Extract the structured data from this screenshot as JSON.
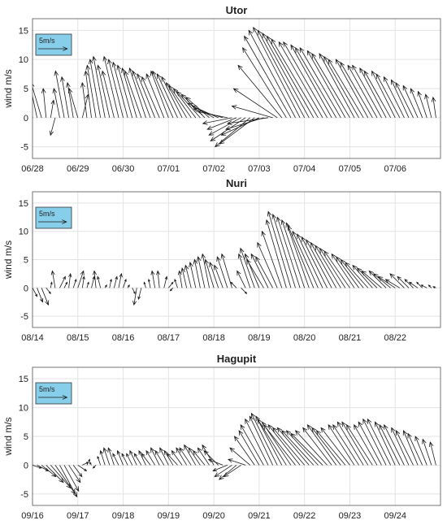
{
  "chart_data": [
    {
      "type": "quiver",
      "title": "Utor",
      "ylabel": "wind m/s",
      "xlabel": "",
      "ylim": [
        -7,
        17
      ],
      "yticks": [
        -5,
        0,
        5,
        10,
        15
      ],
      "xticks": [
        "06/28",
        "06/29",
        "06/30",
        "07/01",
        "07/02",
        "07/03",
        "07/04",
        "07/05",
        "07/06"
      ],
      "xrange_days": [
        0,
        9
      ],
      "legend": {
        "label": "5m/s",
        "u": 5,
        "v": 0,
        "placement": "top-left"
      },
      "grid": true,
      "series": [
        {
          "t": [
            0.0,
            0.1,
            0.2,
            0.3,
            0.4,
            0.5,
            0.6,
            0.7,
            0.8,
            0.9,
            1.0,
            1.1,
            1.2,
            1.3,
            1.4,
            1.5,
            1.6,
            1.7,
            1.8,
            1.9,
            2.0,
            2.1,
            2.2,
            2.3,
            2.4,
            2.5,
            2.6,
            2.7,
            2.8,
            2.9,
            3.0,
            3.1,
            3.2,
            3.3,
            3.4,
            3.5,
            3.6,
            3.7,
            3.8,
            3.9,
            4.0,
            4.1,
            4.2,
            4.3,
            4.4,
            4.5,
            4.6,
            4.7,
            4.8,
            4.9,
            5.0,
            5.1,
            5.2,
            5.3,
            5.4,
            5.5,
            5.6,
            5.7,
            5.8,
            5.9,
            6.0,
            6.1,
            6.2,
            6.3,
            6.4,
            6.5,
            6.6,
            6.7,
            6.8,
            6.9,
            7.0,
            7.1,
            7.2,
            7.3,
            7.4,
            7.5,
            7.6,
            7.7,
            7.8,
            7.9,
            8.0,
            8.1,
            8.2,
            8.3,
            8.4,
            8.5,
            8.6,
            8.7,
            8.8,
            8.9
          ],
          "u": [
            -1.0,
            -1.5,
            -1.8,
            -0.5,
            0.5,
            -0.8,
            -1.0,
            -1.5,
            -1.2,
            -1.0,
            -1.5,
            1.0,
            -0.8,
            -1.0,
            -1.5,
            -1.8,
            -2.0,
            -2.0,
            -2.0,
            -2.5,
            -2.5,
            -2.5,
            -2.5,
            -2.5,
            -2.8,
            -2.8,
            -3.0,
            -3.0,
            -3.0,
            -3.0,
            -3.0,
            -3.5,
            -3.5,
            -3.5,
            -3.5,
            -3.8,
            -3.8,
            -4.0,
            -4.0,
            -4.0,
            -4.5,
            -4.5,
            -5.0,
            -5.0,
            -5.0,
            -5.0,
            -5.5,
            -6.0,
            -6.0,
            -6.0,
            -6.5,
            -6.5,
            -7.0,
            -7.0,
            -7.5,
            -7.5,
            -7.5,
            -8.0,
            -8.0,
            -8.0,
            -8.0,
            -8.0,
            -8.0,
            -8.0,
            -7.5,
            -7.5,
            -7.0,
            -7.0,
            -7.0,
            -6.5,
            -6.5,
            -6.0,
            -6.0,
            -6.0,
            -5.5,
            -5.5,
            -5.0,
            -5.0,
            -4.5,
            -4.5,
            -4.0,
            -4.0,
            -3.5,
            -3.0,
            -3.0,
            -2.5,
            -2.0,
            -1.5,
            -1.0,
            -0.5
          ],
          "v": [
            5.0,
            7.0,
            6.0,
            5.0,
            3.0,
            -3.0,
            5.0,
            8.0,
            7.0,
            6.0,
            5.0,
            4.0,
            6.0,
            8.0,
            9.0,
            10.0,
            10.5,
            9.0,
            8.0,
            10.5,
            10.0,
            9.5,
            9.0,
            8.5,
            8.0,
            8.5,
            8.0,
            7.5,
            7.0,
            7.5,
            8.0,
            8.0,
            7.5,
            7.0,
            6.0,
            5.5,
            5.0,
            4.5,
            4.0,
            3.5,
            2.5,
            2.0,
            1.5,
            1.0,
            -1.0,
            -2.0,
            -3.0,
            -4.0,
            -5.0,
            -4.5,
            -3.0,
            -2.0,
            -1.0,
            2.0,
            5.0,
            9.0,
            12.0,
            14.0,
            15.0,
            15.5,
            15.0,
            14.5,
            14.0,
            13.5,
            13.0,
            13.0,
            12.5,
            12.0,
            12.0,
            11.5,
            11.0,
            11.0,
            10.5,
            10.0,
            10.0,
            9.5,
            9.0,
            9.0,
            8.5,
            8.0,
            8.0,
            7.5,
            7.0,
            6.5,
            6.0,
            5.5,
            5.0,
            4.5,
            4.0,
            3.5
          ]
        }
      ]
    },
    {
      "type": "quiver",
      "title": "Nuri",
      "ylabel": "wind m/s",
      "xlabel": "",
      "ylim": [
        -7,
        17
      ],
      "yticks": [
        -5,
        0,
        5,
        10,
        15
      ],
      "xticks": [
        "08/14",
        "08/15",
        "08/16",
        "08/17",
        "08/18",
        "08/19",
        "08/20",
        "08/21",
        "08/22"
      ],
      "xrange_days": [
        0,
        9
      ],
      "legend": {
        "label": "5m/s",
        "u": 5,
        "v": 0,
        "placement": "top-left"
      },
      "grid": true,
      "series": [
        {
          "t": [
            0.0,
            0.1,
            0.2,
            0.3,
            0.4,
            0.5,
            0.6,
            0.7,
            0.8,
            0.9,
            1.0,
            1.1,
            1.2,
            1.3,
            1.4,
            1.5,
            1.6,
            1.7,
            1.8,
            1.9,
            2.0,
            2.1,
            2.2,
            2.3,
            2.4,
            2.5,
            2.6,
            2.7,
            2.8,
            2.9,
            3.0,
            3.1,
            3.2,
            3.3,
            3.4,
            3.5,
            3.6,
            3.7,
            3.8,
            3.9,
            4.0,
            4.1,
            4.2,
            4.3,
            4.4,
            4.5,
            4.6,
            4.7,
            4.8,
            4.9,
            5.0,
            5.1,
            5.2,
            5.3,
            5.4,
            5.5,
            5.6,
            5.7,
            5.8,
            5.9,
            6.0,
            6.1,
            6.2,
            6.3,
            6.4,
            6.5,
            6.6,
            6.7,
            6.8,
            6.9,
            7.0,
            7.1,
            7.2,
            7.3,
            7.4,
            7.5,
            7.6,
            7.7,
            7.8,
            7.9,
            8.0,
            8.1,
            8.2,
            8.3,
            8.4,
            8.5,
            8.6,
            8.7,
            8.8,
            8.9
          ],
          "u": [
            0.8,
            1.0,
            1.2,
            0.8,
            0.2,
            -0.5,
            1.0,
            0.5,
            0.3,
            0.5,
            1.0,
            0.3,
            0.3,
            0.5,
            -0.3,
            -0.5,
            0.3,
            0.3,
            0.5,
            0.5,
            0.5,
            0.3,
            0.5,
            -0.5,
            -0.5,
            -0.3,
            -0.3,
            -0.5,
            -0.3,
            0.5,
            0.8,
            -0.5,
            -0.5,
            -0.5,
            -0.8,
            -1.0,
            -1.0,
            -1.0,
            -1.2,
            -1.2,
            -1.5,
            -1.5,
            -1.5,
            -1.8,
            -1.8,
            -1.0,
            1.0,
            -1.5,
            -2.0,
            -2.5,
            -2.5,
            -3.0,
            -3.0,
            -3.0,
            -3.5,
            -3.5,
            -3.5,
            -4.0,
            -4.0,
            -4.0,
            -4.0,
            -4.0,
            -4.5,
            -4.5,
            -4.5,
            -4.5,
            -4.5,
            -4.5,
            -4.5,
            -4.5,
            -4.5,
            -4.0,
            -4.0,
            -4.0,
            -4.0,
            -3.5,
            -3.5,
            -3.5,
            -3.0,
            -3.0,
            -3.0,
            -2.5,
            -2.5,
            -2.0,
            -1.5,
            -1.5,
            -1.0,
            -1.0,
            -0.5,
            -0.5
          ],
          "v": [
            -1.5,
            -2.5,
            -3.0,
            -1.0,
            1.0,
            3.0,
            2.0,
            1.0,
            2.5,
            1.5,
            3.0,
            2.0,
            1.0,
            2.0,
            3.0,
            2.0,
            0.5,
            1.5,
            2.0,
            2.5,
            1.5,
            0.5,
            -1.0,
            -3.0,
            -2.0,
            1.0,
            1.5,
            3.0,
            3.0,
            2.0,
            1.0,
            -0.5,
            1.5,
            3.0,
            3.5,
            4.0,
            4.5,
            5.0,
            5.5,
            6.0,
            5.0,
            4.5,
            4.0,
            5.5,
            6.0,
            1.0,
            -1.0,
            3.0,
            6.0,
            7.0,
            6.0,
            5.0,
            6.0,
            5.5,
            8.0,
            10.0,
            12.0,
            13.5,
            13.0,
            12.5,
            12.0,
            11.5,
            11.0,
            10.0,
            9.5,
            9.0,
            8.5,
            8.0,
            7.5,
            7.0,
            6.5,
            6.0,
            5.5,
            5.0,
            4.5,
            4.0,
            3.5,
            3.0,
            3.0,
            2.5,
            2.0,
            1.5,
            2.5,
            2.0,
            1.5,
            1.0,
            1.0,
            0.5,
            0.5,
            0.2
          ]
        }
      ]
    },
    {
      "type": "quiver",
      "title": "Hagupit",
      "ylabel": "wind m/s",
      "xlabel": "",
      "ylim": [
        -7,
        17
      ],
      "yticks": [
        -5,
        0,
        5,
        10,
        15
      ],
      "xticks": [
        "09/16",
        "09/17",
        "09/18",
        "09/19",
        "09/20",
        "09/21",
        "09/22",
        "09/23",
        "09/24"
      ],
      "xrange_days": [
        0,
        9
      ],
      "legend": {
        "label": "5m/s",
        "u": 5,
        "v": 0,
        "placement": "top-left"
      },
      "grid": true,
      "series": [
        {
          "t": [
            0.0,
            0.1,
            0.2,
            0.3,
            0.4,
            0.5,
            0.6,
            0.7,
            0.8,
            0.9,
            1.0,
            1.1,
            1.2,
            1.3,
            1.4,
            1.5,
            1.6,
            1.7,
            1.8,
            1.9,
            2.0,
            2.1,
            2.2,
            2.3,
            2.4,
            2.5,
            2.6,
            2.7,
            2.8,
            2.9,
            3.0,
            3.1,
            3.2,
            3.3,
            3.4,
            3.5,
            3.6,
            3.7,
            3.8,
            3.9,
            4.0,
            4.1,
            4.2,
            4.3,
            4.4,
            4.5,
            4.6,
            4.7,
            4.8,
            4.9,
            5.0,
            5.1,
            5.2,
            5.3,
            5.4,
            5.5,
            5.6,
            5.7,
            5.8,
            5.9,
            6.0,
            6.1,
            6.2,
            6.3,
            6.4,
            6.5,
            6.6,
            6.7,
            6.8,
            6.9,
            7.0,
            7.1,
            7.2,
            7.3,
            7.4,
            7.5,
            7.6,
            7.7,
            7.8,
            7.9,
            8.0,
            8.1,
            8.2,
            8.3,
            8.4,
            8.5,
            8.6,
            8.7,
            8.8,
            8.9
          ],
          "u": [
            1.5,
            2.0,
            2.5,
            3.0,
            3.5,
            3.5,
            3.0,
            2.5,
            2.0,
            1.5,
            1.5,
            1.0,
            0.5,
            -0.3,
            -0.5,
            -0.5,
            -0.8,
            -1.0,
            -1.0,
            -1.0,
            -1.0,
            -1.0,
            -1.0,
            -1.2,
            -1.2,
            -1.2,
            -1.5,
            -1.5,
            -1.5,
            -1.5,
            -1.5,
            -1.5,
            -1.8,
            -1.8,
            -1.8,
            -2.0,
            -2.0,
            -2.0,
            -2.0,
            -2.0,
            -2.0,
            -2.5,
            -2.5,
            -2.5,
            -3.0,
            -3.0,
            -3.0,
            -3.0,
            -3.5,
            -3.5,
            -3.5,
            -4.0,
            -4.0,
            -4.0,
            -4.5,
            -4.5,
            -5.0,
            -5.0,
            -5.5,
            -5.5,
            -5.5,
            -5.5,
            -5.5,
            -5.5,
            -5.5,
            -5.5,
            -5.0,
            -5.0,
            -5.0,
            -5.0,
            -5.0,
            -4.5,
            -4.5,
            -4.5,
            -4.5,
            -4.5,
            -4.0,
            -4.0,
            -4.0,
            -4.0,
            -3.5,
            -3.5,
            -3.5,
            -3.0,
            -3.0,
            -2.5,
            -2.5,
            -2.0,
            -1.5,
            -1.0
          ],
          "v": [
            -0.5,
            -1.0,
            -2.0,
            -3.0,
            -4.0,
            -5.0,
            -5.5,
            -4.5,
            -3.0,
            -2.0,
            -1.0,
            0.5,
            1.0,
            0.5,
            -0.5,
            1.5,
            2.5,
            3.0,
            3.0,
            2.0,
            2.5,
            2.0,
            2.0,
            2.5,
            2.0,
            2.5,
            2.0,
            2.5,
            3.0,
            2.5,
            3.0,
            2.5,
            2.0,
            2.5,
            3.0,
            3.0,
            3.5,
            3.0,
            2.5,
            3.0,
            3.5,
            2.5,
            1.0,
            -1.0,
            -2.0,
            -2.5,
            -2.0,
            1.0,
            3.0,
            5.0,
            6.0,
            7.0,
            8.0,
            8.5,
            9.0,
            8.5,
            8.0,
            7.5,
            7.0,
            7.0,
            6.5,
            6.5,
            6.0,
            6.0,
            5.5,
            6.0,
            6.5,
            7.0,
            6.5,
            6.0,
            6.5,
            7.0,
            7.0,
            7.5,
            7.5,
            7.0,
            7.0,
            7.5,
            8.0,
            8.0,
            7.5,
            7.0,
            7.0,
            6.5,
            6.0,
            6.0,
            5.5,
            5.0,
            4.5,
            4.0
          ]
        }
      ]
    }
  ]
}
